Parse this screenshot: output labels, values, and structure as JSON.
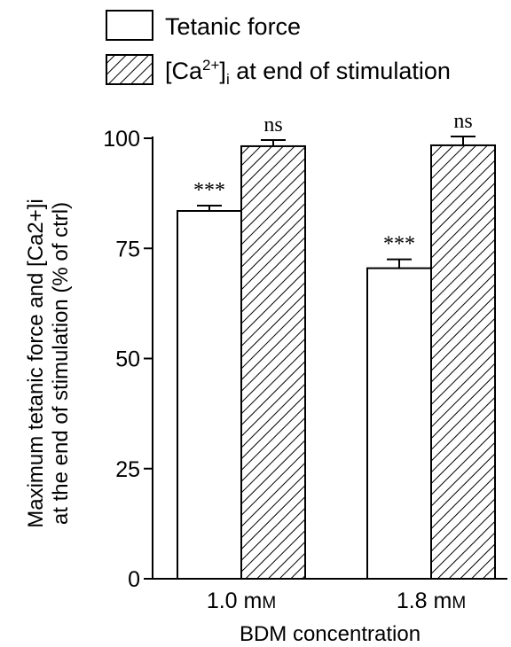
{
  "chart_data": {
    "type": "bar",
    "categories": [
      "1.0 mM",
      "1.8 mM"
    ],
    "series": [
      {
        "name": "Tetanic force",
        "values": [
          83.5,
          70.5
        ],
        "errors": [
          1.2,
          2.0
        ],
        "significance": [
          "***",
          "***"
        ],
        "fill": "white"
      },
      {
        "name": "[Ca2+]i at end of stimulation",
        "values": [
          98.2,
          98.4
        ],
        "errors": [
          1.4,
          2.0
        ],
        "significance": [
          "ns",
          "ns"
        ],
        "fill": "hatched"
      }
    ],
    "xlabel": "BDM concentration",
    "ylabel_line1": "Maximum tetanic force and  [Ca2+]i",
    "ylabel_line2": "at the end of stimulation (% of ctrl)",
    "ylim": [
      0,
      100
    ],
    "yticks": [
      0,
      25,
      50,
      75,
      100
    ],
    "legend": {
      "position": "top",
      "entries": [
        {
          "label": "Tetanic force"
        },
        {
          "label_prefix": "[Ca",
          "label_sup": "2+",
          "label_close": "]",
          "label_sub": "i",
          "label_rest": " at end of stimulation"
        }
      ]
    },
    "grid": false,
    "colors": {
      "stroke": "#000000",
      "background": "#ffffff"
    }
  }
}
